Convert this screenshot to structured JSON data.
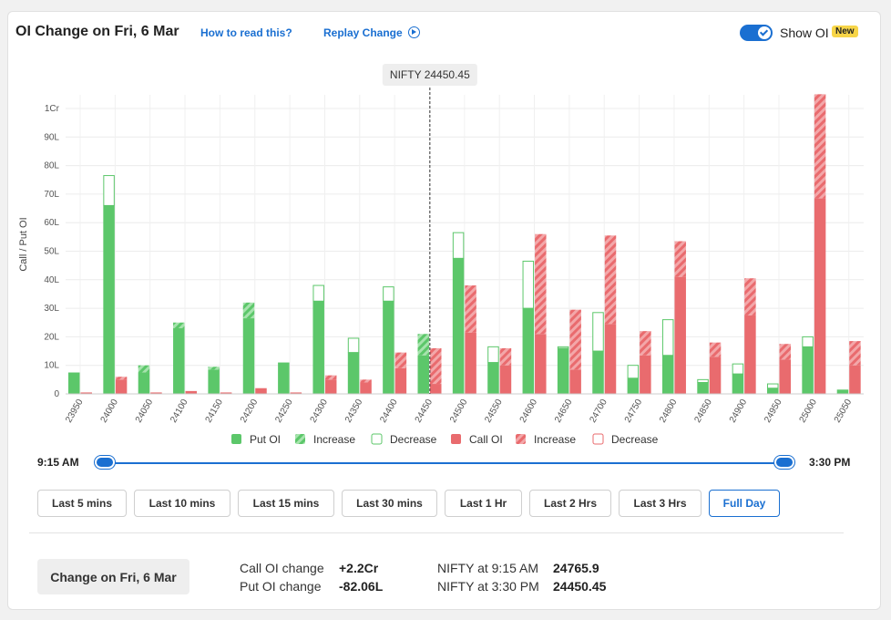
{
  "header": {
    "title": "OI Change on Fri, 6 Mar",
    "how_to_read": "How to read this?",
    "replay": "Replay Change",
    "show_oi_label": "Show OI",
    "new_badge": "New"
  },
  "colors": {
    "put": "#5cc76a",
    "call": "#e96b6e",
    "put_light": "#a6e3ad",
    "call_light": "#f3a7a9",
    "accent": "#1a6fd1"
  },
  "chart_data": {
    "type": "bar",
    "ylabel": "Call / Put OI",
    "ylim": [
      0,
      105
    ],
    "y_ticks": [
      0,
      10,
      20,
      30,
      40,
      50,
      60,
      70,
      80,
      90,
      100
    ],
    "y_tick_labels": [
      "0",
      "10L",
      "20L",
      "30L",
      "40L",
      "50L",
      "60L",
      "70L",
      "80L",
      "90L",
      "1Cr"
    ],
    "unit": "L",
    "strikes": [
      "23950",
      "24000",
      "24050",
      "24100",
      "24150",
      "24200",
      "24250",
      "24300",
      "24350",
      "24400",
      "24450",
      "24500",
      "24550",
      "24600",
      "24650",
      "24700",
      "24750",
      "24800",
      "24850",
      "24900",
      "24950",
      "25000",
      "25050"
    ],
    "put_oi": [
      7.5,
      66,
      7.5,
      23,
      8.5,
      26.5,
      11,
      32.5,
      14.5,
      32.5,
      13.5,
      47.5,
      11,
      30,
      16,
      15,
      5.5,
      13.5,
      4,
      7,
      2,
      16.5,
      1.5
    ],
    "put_change": [
      0,
      -10.5,
      2.5,
      2,
      1,
      5.5,
      0,
      -5.5,
      -5,
      -5,
      7.5,
      -9,
      -5.5,
      -16.5,
      -0.5,
      -13.5,
      -4.5,
      -12.5,
      -1,
      -3.5,
      -1.5,
      -3.5,
      0
    ],
    "call_oi": [
      0.5,
      5,
      0.5,
      1,
      0.5,
      2,
      0.5,
      5,
      4,
      9,
      3.5,
      21.5,
      10,
      21,
      8.5,
      24.5,
      13.5,
      41,
      13,
      27.5,
      12,
      68.5,
      10
    ],
    "call_change": [
      0,
      1,
      0,
      0,
      0,
      0,
      0,
      1.5,
      1,
      5.5,
      12.5,
      16.5,
      6,
      35,
      21,
      31,
      8.5,
      12.5,
      5,
      13,
      5.5,
      36.5,
      8.5
    ],
    "spot_label": "NIFTY 24450.45",
    "spot_value": 24450.45,
    "legend": [
      {
        "key": "put_oi",
        "label": "Put OI"
      },
      {
        "key": "put_inc",
        "label": "Increase"
      },
      {
        "key": "put_dec",
        "label": "Decrease"
      },
      {
        "key": "call_oi",
        "label": "Call OI"
      },
      {
        "key": "call_inc",
        "label": "Increase"
      },
      {
        "key": "call_dec",
        "label": "Decrease"
      }
    ],
    "legend_position": "bottom",
    "grid": true
  },
  "slider": {
    "start": "9:15 AM",
    "end": "3:30 PM"
  },
  "ranges": [
    {
      "label": "Last 5 mins",
      "active": false
    },
    {
      "label": "Last 10 mins",
      "active": false
    },
    {
      "label": "Last 15 mins",
      "active": false
    },
    {
      "label": "Last 30 mins",
      "active": false
    },
    {
      "label": "Last 1 Hr",
      "active": false
    },
    {
      "label": "Last 2 Hrs",
      "active": false
    },
    {
      "label": "Last 3 Hrs",
      "active": false
    },
    {
      "label": "Full Day",
      "active": true
    }
  ],
  "summary": {
    "button": "Change on Fri, 6 Mar",
    "call_label": "Call OI change",
    "call_value": "+2.2Cr",
    "put_label": "Put OI change",
    "put_value": "-82.06L",
    "nifty_start_label": "NIFTY at 9:15 AM",
    "nifty_start_value": "24765.9",
    "nifty_end_label": "NIFTY at 3:30 PM",
    "nifty_end_value": "24450.45"
  }
}
